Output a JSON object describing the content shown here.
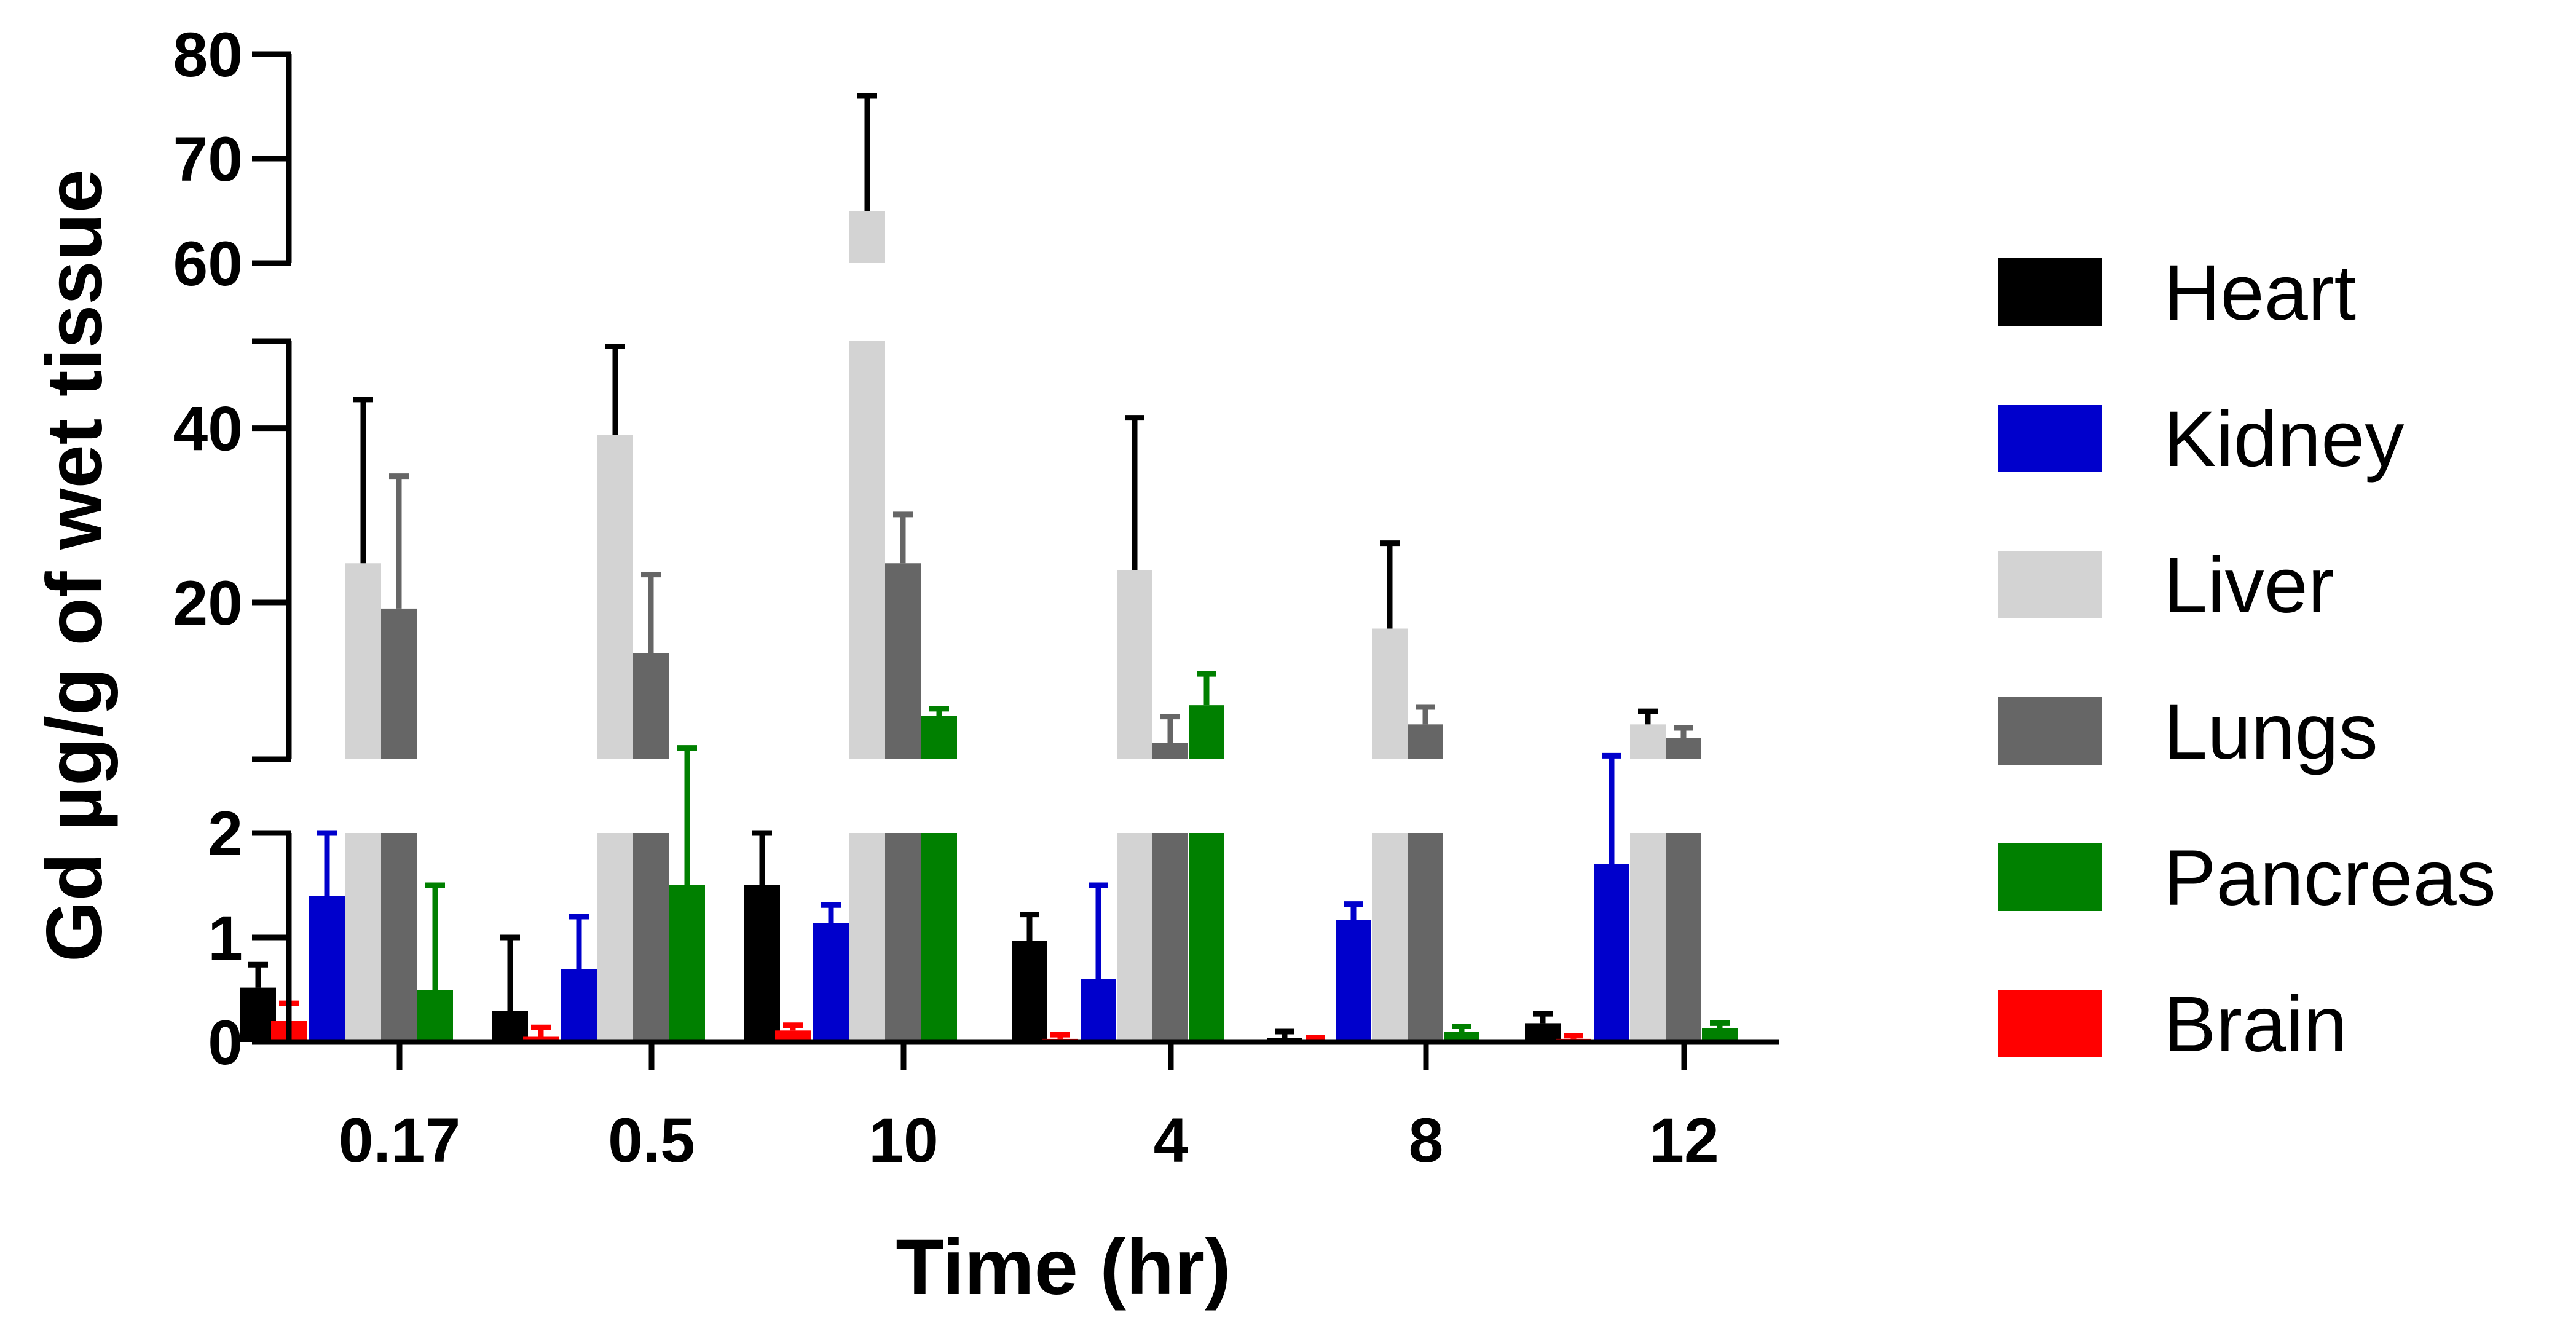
{
  "chart_data": {
    "type": "bar",
    "xlabel": "Time (hr)",
    "ylabel": "Gd µg/g of wet tissue",
    "categories": [
      "0.17",
      "0.5",
      "10",
      "4",
      "8",
      "12"
    ],
    "y_axis_segments": [
      {
        "range": [
          0,
          2
        ],
        "ticks": [
          0,
          1,
          2
        ]
      },
      {
        "range": [
          2,
          50
        ],
        "ticks": [
          20,
          40
        ]
      },
      {
        "range": [
          60,
          80
        ],
        "ticks": [
          60,
          70,
          80
        ]
      }
    ],
    "legend_position": "right",
    "series": [
      {
        "name": "Heart",
        "color": "#000000",
        "values": [
          0.52,
          0.3,
          1.5,
          0.97,
          0.04,
          0.18
        ],
        "errors": [
          0.22,
          0.7,
          0.5,
          0.25,
          0.06,
          0.09
        ]
      },
      {
        "name": "Brain",
        "color": "#ff0000",
        "values": [
          0.2,
          0.05,
          0.11,
          0.03,
          0.02,
          0.03
        ],
        "errors": [
          0.17,
          0.09,
          0.05,
          0.04,
          0.02,
          0.03
        ]
      },
      {
        "name": "Kidney",
        "color": "#0000cc",
        "values": [
          1.4,
          0.7,
          1.14,
          0.6,
          1.17,
          1.7
        ],
        "errors": [
          0.6,
          0.5,
          0.17,
          0.9,
          0.15,
          0.7
        ]
      },
      {
        "name": "Liver",
        "color": "#d3d3d3",
        "values": [
          24.5,
          39.2,
          65,
          23.7,
          17,
          6
        ],
        "errors": [
          18.8,
          10.2,
          11,
          17.5,
          9.8,
          1.5
        ]
      },
      {
        "name": "Lungs",
        "color": "#666666",
        "values": [
          19.3,
          14.2,
          24.5,
          3.9,
          6,
          4.4
        ],
        "errors": [
          15.2,
          9,
          5.6,
          3,
          2,
          1.2
        ]
      },
      {
        "name": "Pancreas",
        "color": "#008000",
        "values": [
          0.5,
          1.5,
          7,
          8.2,
          0.1,
          0.13
        ],
        "errors": [
          1,
          1.8,
          0.8,
          3.6,
          0.05,
          0.05
        ]
      }
    ]
  }
}
